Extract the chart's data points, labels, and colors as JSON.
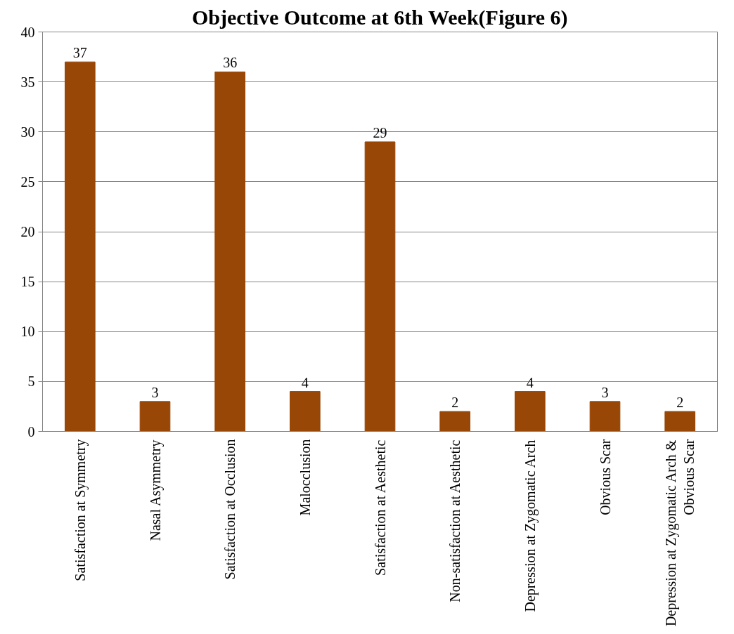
{
  "chart_data": {
    "type": "bar",
    "title": "Objective Outcome at 6th Week(Figure 6)",
    "categories": [
      "Satisfaction at Symmetry",
      "Nasal Asymmetry",
      "Satisfaction at Occlusion",
      "Malocclusion",
      "Satisfaction at Aesthetic",
      "Non-satisfaction at Aesthetic",
      "Depression at Zygomatic Arch",
      "Obvious Scar",
      "Depression at Zygomatic Arch & Obvious Scar"
    ],
    "values": [
      37,
      3,
      36,
      4,
      29,
      2,
      4,
      3,
      2
    ],
    "color": "#994706",
    "ylim": [
      0,
      40
    ],
    "yticks": [
      0,
      5,
      10,
      15,
      20,
      25,
      30,
      35,
      40
    ],
    "grid": "y",
    "data_labels": true
  }
}
